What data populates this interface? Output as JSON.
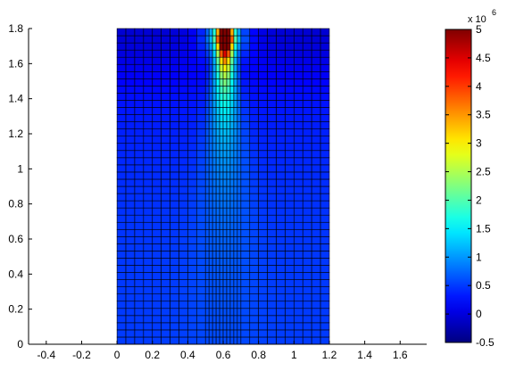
{
  "chart_data": {
    "type": "heatmap",
    "title": "",
    "xlabel": "",
    "ylabel": "",
    "xlim": [
      -0.5,
      1.75
    ],
    "ylim": [
      0,
      1.8
    ],
    "x_ticks": [
      "-0.4",
      "-0.2",
      "0",
      "0.2",
      "0.4",
      "0.6",
      "0.8",
      "1",
      "1.2",
      "1.4",
      "1.6"
    ],
    "y_ticks": [
      "0",
      "0.2",
      "0.4",
      "0.6",
      "0.8",
      "1",
      "1.2",
      "1.4",
      "1.6",
      "1.8"
    ],
    "domain": {
      "x": [
        0,
        1.2
      ],
      "y": [
        0,
        1.8
      ]
    },
    "mesh": {
      "nx": 30,
      "ny": 44,
      "refined_x": [
        0.5,
        0.7
      ]
    },
    "source": {
      "x": 0.61,
      "y": 1.75,
      "peak_value": 5000000
    },
    "background_value": 500000,
    "surface_low_value": -300000,
    "colormap": "jet",
    "colorbar": {
      "min": -0.5,
      "max": 5,
      "exponent_label": "x 10",
      "exponent_power": "6",
      "ticks": [
        "-0.5",
        "0",
        "0.5",
        "1",
        "1.5",
        "2",
        "2.5",
        "3",
        "3.5",
        "4",
        "4.5",
        "5"
      ]
    }
  }
}
